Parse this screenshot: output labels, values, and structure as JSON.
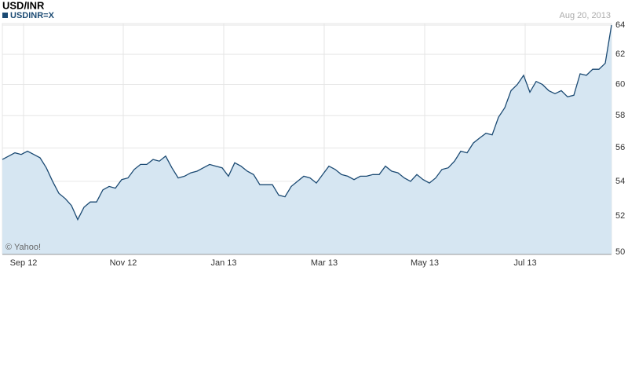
{
  "chart_data": {
    "type": "area",
    "title": "USD/INR",
    "date_label": "Aug 20, 2013",
    "watermark": "© Yahoo!",
    "log_scale": true,
    "grid": true,
    "xlim": [
      0,
      97
    ],
    "xticks": [
      {
        "value": 3.375,
        "label": "Sep 12"
      },
      {
        "value": 19.25,
        "label": "Nov 12"
      },
      {
        "value": 35.25,
        "label": "Jan 13"
      },
      {
        "value": 51.25,
        "label": "Mar 13"
      },
      {
        "value": 67.25,
        "label": "May 13"
      },
      {
        "value": 83.25,
        "label": "Jul 13"
      }
    ],
    "ylim": [
      50,
      64
    ],
    "yticks": [
      50,
      52,
      54,
      56,
      58,
      60,
      62,
      64
    ],
    "series": [
      {
        "name": "USDINR=X",
        "color": "#1b4a73",
        "fill": "#d6e6f2",
        "values": [
          55.3,
          55.5,
          55.7,
          55.6,
          55.8,
          55.6,
          55.4,
          54.8,
          54.0,
          53.3,
          53.0,
          52.6,
          51.8,
          52.5,
          52.8,
          52.8,
          53.5,
          53.7,
          53.6,
          54.1,
          54.2,
          54.7,
          55.0,
          55.0,
          55.3,
          55.2,
          55.5,
          54.8,
          54.2,
          54.3,
          54.5,
          54.6,
          54.8,
          55.0,
          54.9,
          54.8,
          54.3,
          55.1,
          54.9,
          54.6,
          54.4,
          53.8,
          53.8,
          53.8,
          53.2,
          53.1,
          53.7,
          54.0,
          54.3,
          54.2,
          53.9,
          54.4,
          54.9,
          54.7,
          54.4,
          54.3,
          54.1,
          54.3,
          54.3,
          54.4,
          54.4,
          54.9,
          54.6,
          54.5,
          54.2,
          54.0,
          54.4,
          54.1,
          53.9,
          54.2,
          54.7,
          54.8,
          55.2,
          55.8,
          55.7,
          56.3,
          56.6,
          56.9,
          56.8,
          57.9,
          58.5,
          59.6,
          60.0,
          60.6,
          59.5,
          60.2,
          60.0,
          59.6,
          59.4,
          59.6,
          59.2,
          59.3,
          60.7,
          60.6,
          61.0,
          61.0,
          61.4,
          64.0
        ]
      }
    ]
  }
}
